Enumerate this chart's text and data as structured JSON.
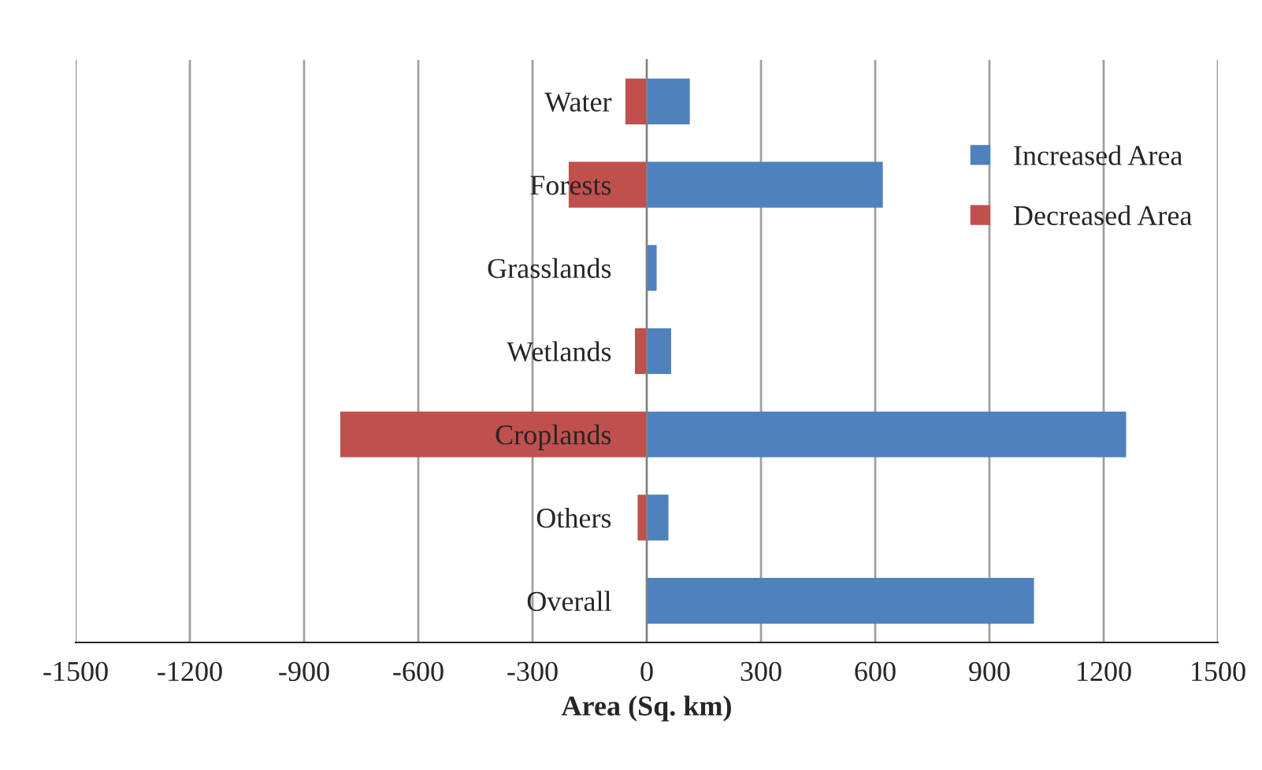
{
  "chart_data": {
    "type": "bar",
    "orientation": "horizontal",
    "stacked": true,
    "xlabel": "Area (Sq. km)",
    "categories": [
      "Water",
      "Forests",
      "Grasslands",
      "Wetlands",
      "Croplands",
      "Others",
      "Overall"
    ],
    "series": [
      {
        "name": "Increased Area",
        "color": "#4f81bd",
        "values": [
          113,
          620,
          26,
          64,
          1259,
          57,
          1017
        ]
      },
      {
        "name": "Decreased Area",
        "color": "#c0504d",
        "values": [
          -56,
          -205,
          null,
          -31,
          -805,
          -24,
          null
        ]
      }
    ],
    "xlim": [
      -1500,
      1500
    ],
    "xticks": [
      -1500,
      -1200,
      -900,
      -600,
      -300,
      0,
      300,
      600,
      900,
      1200,
      1500
    ],
    "grid": "x",
    "legend": "right"
  }
}
